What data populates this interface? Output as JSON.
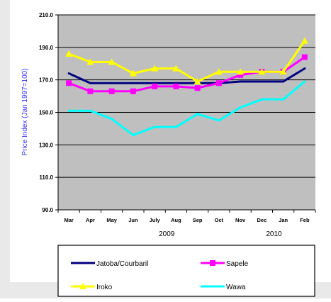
{
  "chart_data": {
    "type": "line",
    "ylabel": "Price Index (Jan 1997=100)",
    "ylim": [
      90,
      210
    ],
    "yticks": [
      "210.0",
      "190.0",
      "170.0",
      "150.0",
      "130.0",
      "110.0",
      "90.0"
    ],
    "ytick_values": [
      210,
      190,
      170,
      150,
      130,
      110,
      90
    ],
    "categories": [
      "Mar",
      "Apr",
      "May",
      "Jun",
      "July",
      "Aug",
      "Sep",
      "Oct",
      "Nov",
      "Dec",
      "Jan",
      "Feb"
    ],
    "year_labels": [
      "2009",
      "2010"
    ],
    "grid": true,
    "legend_position": "bottom",
    "series": [
      {
        "name": "Jatoba/Courbaril",
        "color": "#000080",
        "marker": "none",
        "values": [
          174,
          168,
          168,
          168,
          168,
          168,
          168,
          168,
          169,
          169,
          169,
          177
        ]
      },
      {
        "name": "Sapele",
        "color": "#ff00ff",
        "marker": "square",
        "values": [
          168,
          163,
          163,
          163,
          166,
          166,
          165,
          168,
          173,
          175,
          175,
          184
        ]
      },
      {
        "name": "Iroko",
        "color": "#ffff00",
        "marker": "triangle",
        "values": [
          186,
          181,
          181,
          174,
          177,
          177,
          169,
          175,
          175,
          175,
          175,
          194
        ]
      },
      {
        "name": "Wawa",
        "color": "#00ffff",
        "marker": "none",
        "values": [
          151,
          151,
          146,
          136,
          141,
          141,
          149,
          145,
          153,
          158,
          158,
          169
        ]
      }
    ]
  }
}
